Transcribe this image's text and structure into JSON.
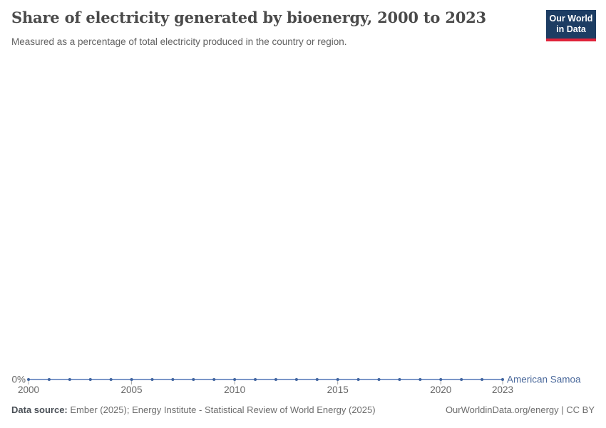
{
  "header": {
    "title": "Share of electricity generated by bioenergy, 2000 to 2023",
    "subtitle": "Measured as a percentage of total electricity produced in the country or region."
  },
  "logo": {
    "line1": "Our World",
    "line2": "in Data",
    "background": "#1d3d63",
    "accent": "#e0233a"
  },
  "chart_data": {
    "type": "line",
    "title": "Share of electricity generated by bioenergy, 2000 to 2023",
    "x": [
      2000,
      2001,
      2002,
      2003,
      2004,
      2005,
      2006,
      2007,
      2008,
      2009,
      2010,
      2011,
      2012,
      2013,
      2014,
      2015,
      2016,
      2017,
      2018,
      2019,
      2020,
      2021,
      2022,
      2023
    ],
    "series": [
      {
        "name": "American Samoa",
        "values": [
          0,
          0,
          0,
          0,
          0,
          0,
          0,
          0,
          0,
          0,
          0,
          0,
          0,
          0,
          0,
          0,
          0,
          0,
          0,
          0,
          0,
          0,
          0,
          0
        ]
      }
    ],
    "x_ticks": [
      2000,
      2005,
      2010,
      2015,
      2020,
      2023
    ],
    "y_ticks": [
      {
        "value": 0,
        "label": "0%"
      }
    ],
    "ylim": [
      0,
      1
    ],
    "grid": false,
    "legend_position": "line-end",
    "colors": {
      "line": "#7b97c9",
      "point": "#41659f",
      "series_label": "#4c6a9c",
      "axis_text": "#666666",
      "tick": "#a5a5a5"
    }
  },
  "footer": {
    "source_label": "Data source:",
    "source_text": " Ember (2025); Energy Institute - Statistical Review of World Energy (2025)",
    "right_text": "OurWorldinData.org/energy | CC BY"
  }
}
